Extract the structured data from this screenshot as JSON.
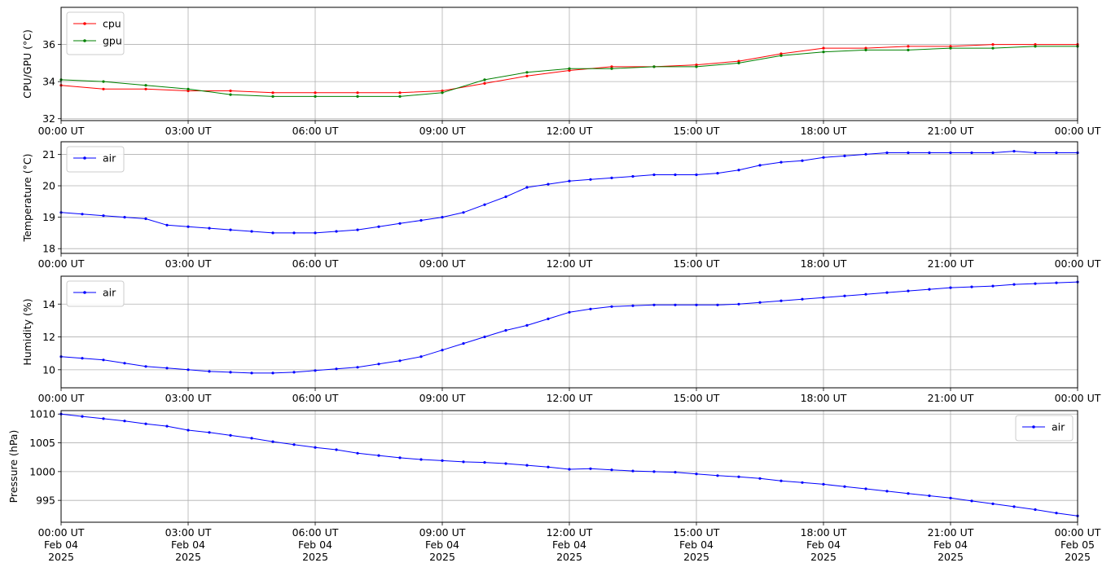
{
  "chart_data": [
    {
      "type": "line",
      "ylabel": "CPU/GPU (°C)",
      "ylim": [
        31.9,
        38.0
      ],
      "yticks": [
        32,
        34,
        36
      ],
      "xlim": [
        0,
        24
      ],
      "xtick_labels": [
        "00:00 UT",
        "03:00 UT",
        "06:00 UT",
        "09:00 UT",
        "12:00 UT",
        "15:00 UT",
        "18:00 UT",
        "21:00 UT",
        "00:00 UT"
      ],
      "legend_position": "top-left",
      "grid": true,
      "series": [
        {
          "name": "cpu",
          "color": "#ff0000",
          "x": [
            0,
            1,
            2,
            3,
            4,
            5,
            6,
            7,
            8,
            9,
            10,
            11,
            12,
            13,
            14,
            15,
            16,
            17,
            18,
            19,
            20,
            21,
            22,
            23,
            24
          ],
          "y": [
            33.8,
            33.6,
            33.6,
            33.5,
            33.5,
            33.4,
            33.4,
            33.4,
            33.4,
            33.5,
            33.9,
            34.3,
            34.6,
            34.8,
            34.8,
            34.9,
            35.1,
            35.5,
            35.8,
            35.8,
            35.9,
            35.9,
            36.0,
            36.0,
            36.0
          ]
        },
        {
          "name": "gpu",
          "color": "#008000",
          "x": [
            0,
            1,
            2,
            3,
            4,
            5,
            6,
            7,
            8,
            9,
            10,
            11,
            12,
            13,
            14,
            15,
            16,
            17,
            18,
            19,
            20,
            21,
            22,
            23,
            24
          ],
          "y": [
            34.1,
            34.0,
            33.8,
            33.6,
            33.3,
            33.2,
            33.2,
            33.2,
            33.2,
            33.4,
            34.1,
            34.5,
            34.7,
            34.7,
            34.8,
            34.8,
            35.0,
            35.4,
            35.6,
            35.7,
            35.7,
            35.8,
            35.8,
            35.9,
            35.9
          ]
        }
      ]
    },
    {
      "type": "line",
      "ylabel": "Temperature (°C)",
      "ylim": [
        17.85,
        21.4
      ],
      "yticks": [
        18,
        19,
        20,
        21
      ],
      "xlim": [
        0,
        24
      ],
      "xtick_labels": [
        "00:00 UT",
        "03:00 UT",
        "06:00 UT",
        "09:00 UT",
        "12:00 UT",
        "15:00 UT",
        "18:00 UT",
        "21:00 UT",
        "00:00 UT"
      ],
      "legend_position": "top-left",
      "grid": true,
      "series": [
        {
          "name": "air",
          "color": "#0000ff",
          "x": [
            0,
            0.5,
            1,
            1.5,
            2,
            2.5,
            3,
            3.5,
            4,
            4.5,
            5,
            5.5,
            6,
            6.5,
            7,
            7.5,
            8,
            8.5,
            9,
            9.5,
            10,
            10.5,
            11,
            11.5,
            12,
            12.5,
            13,
            13.5,
            14,
            14.5,
            15,
            15.5,
            16,
            16.5,
            17,
            17.5,
            18,
            18.5,
            19,
            19.5,
            20,
            20.5,
            21,
            21.5,
            22,
            22.5,
            23,
            23.5,
            24
          ],
          "y": [
            19.15,
            19.1,
            19.05,
            19.0,
            18.95,
            18.75,
            18.7,
            18.65,
            18.6,
            18.55,
            18.5,
            18.5,
            18.5,
            18.55,
            18.6,
            18.7,
            18.8,
            18.9,
            19.0,
            19.15,
            19.4,
            19.65,
            19.95,
            20.05,
            20.15,
            20.2,
            20.25,
            20.3,
            20.35,
            20.35,
            20.35,
            20.4,
            20.5,
            20.65,
            20.75,
            20.8,
            20.9,
            20.95,
            21.0,
            21.05,
            21.05,
            21.05,
            21.05,
            21.05,
            21.05,
            21.1,
            21.05,
            21.05,
            21.05
          ]
        }
      ]
    },
    {
      "type": "line",
      "ylabel": "Humidity (%)",
      "ylim": [
        8.9,
        15.7
      ],
      "yticks": [
        10,
        12,
        14
      ],
      "xlim": [
        0,
        24
      ],
      "xtick_labels": [
        "00:00 UT",
        "03:00 UT",
        "06:00 UT",
        "09:00 UT",
        "12:00 UT",
        "15:00 UT",
        "18:00 UT",
        "21:00 UT",
        "00:00 UT"
      ],
      "legend_position": "top-left",
      "grid": true,
      "series": [
        {
          "name": "air",
          "color": "#0000ff",
          "x": [
            0,
            0.5,
            1,
            1.5,
            2,
            2.5,
            3,
            3.5,
            4,
            4.5,
            5,
            5.5,
            6,
            6.5,
            7,
            7.5,
            8,
            8.5,
            9,
            9.5,
            10,
            10.5,
            11,
            11.5,
            12,
            12.5,
            13,
            13.5,
            14,
            14.5,
            15,
            15.5,
            16,
            16.5,
            17,
            17.5,
            18,
            18.5,
            19,
            19.5,
            20,
            20.5,
            21,
            21.5,
            22,
            22.5,
            23,
            23.5,
            24
          ],
          "y": [
            10.8,
            10.7,
            10.6,
            10.4,
            10.2,
            10.1,
            10.0,
            9.9,
            9.85,
            9.8,
            9.8,
            9.85,
            9.95,
            10.05,
            10.15,
            10.35,
            10.55,
            10.8,
            11.2,
            11.6,
            12.0,
            12.4,
            12.7,
            13.1,
            13.5,
            13.7,
            13.85,
            13.9,
            13.95,
            13.95,
            13.95,
            13.95,
            14.0,
            14.1,
            14.2,
            14.3,
            14.4,
            14.5,
            14.6,
            14.7,
            14.8,
            14.9,
            15.0,
            15.05,
            15.1,
            15.2,
            15.25,
            15.3,
            15.35
          ]
        }
      ]
    },
    {
      "type": "line",
      "ylabel": "Pressure (hPa)",
      "ylim": [
        991.2,
        1010.6
      ],
      "yticks": [
        995,
        1000,
        1005,
        1010
      ],
      "xlim": [
        0,
        24
      ],
      "xtick_labels": [
        "00:00 UT\nFeb 04\n2025",
        "03:00 UT\nFeb 04\n2025",
        "06:00 UT\nFeb 04\n2025",
        "09:00 UT\nFeb 04\n2025",
        "12:00 UT\nFeb 04\n2025",
        "15:00 UT\nFeb 04\n2025",
        "18:00 UT\nFeb 04\n2025",
        "21:00 UT\nFeb 04\n2025",
        "00:00 UT\nFeb 05\n2025"
      ],
      "legend_position": "top-right",
      "grid": true,
      "series": [
        {
          "name": "air",
          "color": "#0000ff",
          "x": [
            0,
            0.5,
            1,
            1.5,
            2,
            2.5,
            3,
            3.5,
            4,
            4.5,
            5,
            5.5,
            6,
            6.5,
            7,
            7.5,
            8,
            8.5,
            9,
            9.5,
            10,
            10.5,
            11,
            11.5,
            12,
            12.5,
            13,
            13.5,
            14,
            14.5,
            15,
            15.5,
            16,
            16.5,
            17,
            17.5,
            18,
            18.5,
            19,
            19.5,
            20,
            20.5,
            21,
            21.5,
            22,
            22.5,
            23,
            23.5,
            24
          ],
          "y": [
            1010.0,
            1009.6,
            1009.2,
            1008.8,
            1008.3,
            1007.9,
            1007.2,
            1006.8,
            1006.3,
            1005.8,
            1005.2,
            1004.7,
            1004.2,
            1003.8,
            1003.2,
            1002.8,
            1002.4,
            1002.1,
            1001.9,
            1001.7,
            1001.6,
            1001.4,
            1001.1,
            1000.8,
            1000.4,
            1000.5,
            1000.3,
            1000.1,
            1000.0,
            999.9,
            999.6,
            999.3,
            999.1,
            998.8,
            998.4,
            998.1,
            997.8,
            997.4,
            997.0,
            996.6,
            996.2,
            995.8,
            995.4,
            994.9,
            994.4,
            993.9,
            993.4,
            992.8,
            992.3
          ]
        }
      ]
    }
  ]
}
